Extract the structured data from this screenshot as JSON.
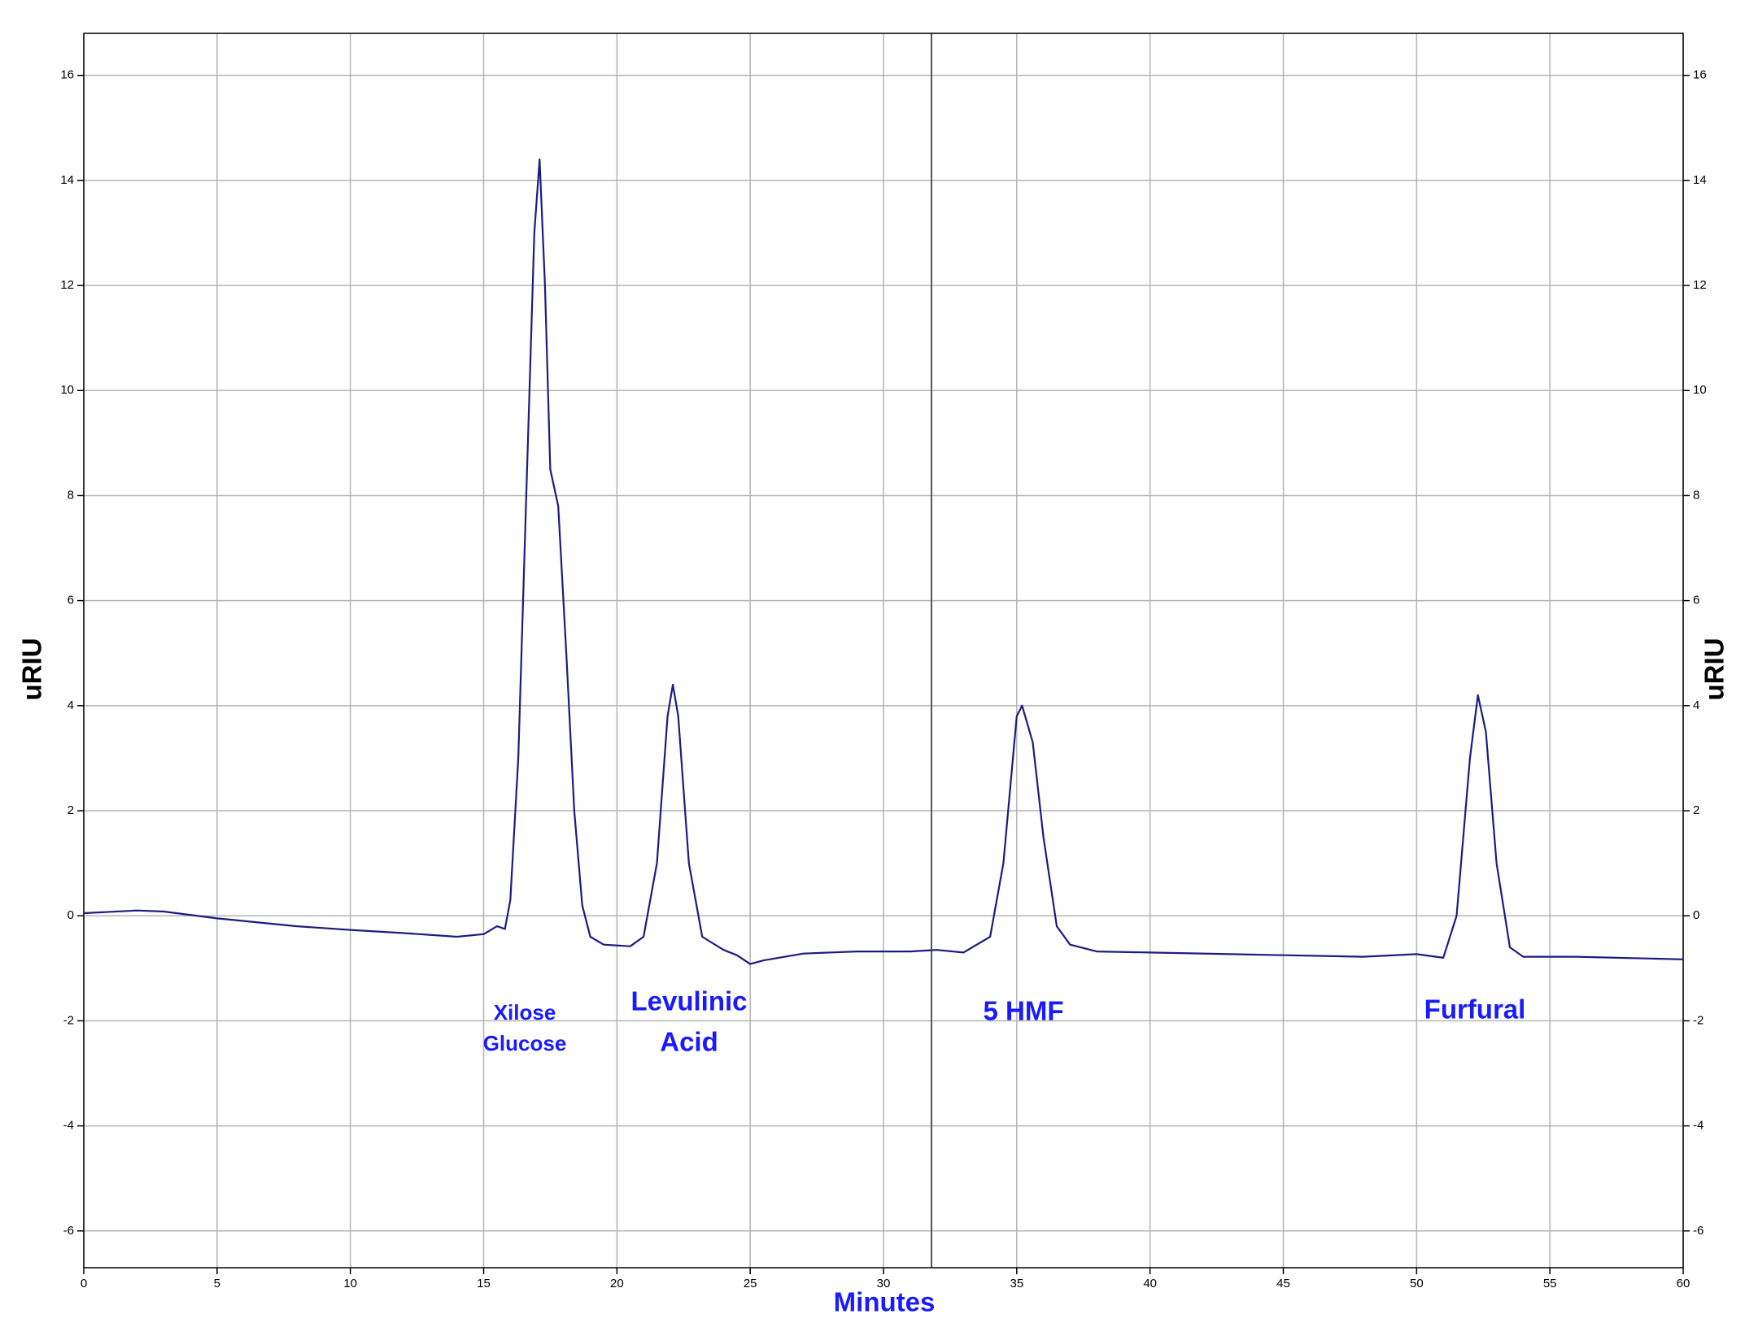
{
  "chart_data": {
    "type": "line",
    "x_label": "Minutes",
    "y_label": "uRIU",
    "color": "#1c1c80",
    "annotation_color": "#1a1aff",
    "grid": true,
    "right_axis": true,
    "vline": 31.8,
    "xlim": [
      0,
      60
    ],
    "xticks": [
      0,
      5,
      10,
      15,
      20,
      25,
      30,
      35,
      40,
      45,
      50,
      55,
      60
    ],
    "ylim": [
      -6.7,
      16.8
    ],
    "yticks": [
      -6,
      -4,
      -2,
      0,
      2,
      4,
      6,
      8,
      10,
      12,
      14,
      16
    ],
    "annotations": [
      "Xilose",
      "Glucose",
      "Levulinic",
      "Acid",
      "5 HMF",
      "Furfural"
    ],
    "x": [
      0,
      2,
      3,
      5,
      8,
      10,
      12,
      14,
      15,
      15.5,
      15.8,
      16,
      16.3,
      16.6,
      16.9,
      17.1,
      17.3,
      17.5,
      17.8,
      18.1,
      18.4,
      18.7,
      19,
      19.5,
      20.5,
      21,
      21.5,
      21.9,
      22.1,
      22.3,
      22.7,
      23.2,
      24,
      24.5,
      25,
      25.5,
      27,
      29,
      31,
      32,
      33,
      34,
      34.5,
      35,
      35.2,
      35.6,
      36,
      36.5,
      37,
      38,
      40,
      45,
      48,
      50,
      51,
      51.5,
      52,
      52.3,
      52.6,
      53,
      53.5,
      54,
      56,
      60
    ],
    "values": [
      0.05,
      0.1,
      0.08,
      -0.05,
      -0.2,
      -0.27,
      -0.33,
      -0.4,
      -0.35,
      -0.2,
      -0.25,
      0.3,
      3,
      8,
      13,
      14.4,
      12,
      8.5,
      7.8,
      5,
      2,
      0.2,
      -0.4,
      -0.55,
      -0.58,
      -0.4,
      1,
      3.8,
      4.4,
      3.8,
      1,
      -0.4,
      -0.65,
      -0.75,
      -0.92,
      -0.85,
      -0.72,
      -0.68,
      -0.68,
      -0.65,
      -0.7,
      -0.4,
      1,
      3.8,
      4,
      3.3,
      1.5,
      -0.2,
      -0.55,
      -0.68,
      -0.7,
      -0.75,
      -0.78,
      -0.73,
      -0.8,
      0,
      3,
      4.2,
      3.5,
      1,
      -0.6,
      -0.78,
      -0.78,
      -0.83
    ]
  }
}
